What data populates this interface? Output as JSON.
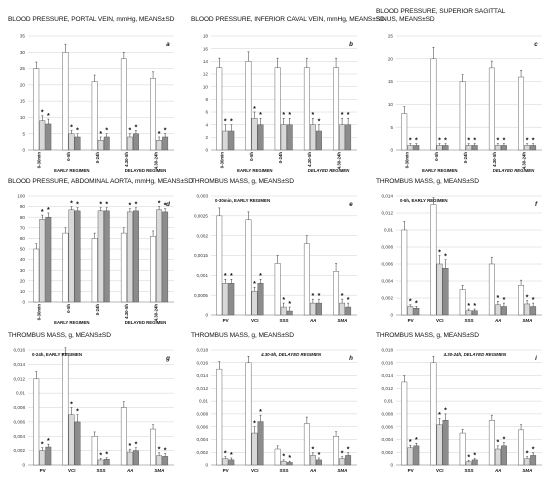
{
  "chart_data": [
    {
      "id": "a",
      "type": "bar",
      "letter": "a",
      "title": "BLOOD PRESSURE, PORTAL VEIN, mmHg, MEANS±SD",
      "subtitle": "",
      "categories": [
        "0-30min",
        "0-5h",
        "0-24h",
        "4.30-5h",
        "4.30-24h"
      ],
      "italic_categories": [],
      "category_style": "vertical",
      "regimes": [
        {
          "label": "EARLY REGIMEN",
          "from": 0,
          "to": 2,
          "italic": false
        },
        {
          "label": "DELAYED REGIMEN",
          "from": 3,
          "to": 4,
          "italic": false
        }
      ],
      "ylim": [
        0,
        35
      ],
      "ticks": [
        0,
        5,
        10,
        15,
        20,
        25,
        30,
        35
      ],
      "series": [
        {
          "values": [
            25,
            30,
            21,
            28,
            22
          ],
          "err": [
            2,
            2.5,
            2,
            2,
            2
          ],
          "color": "#ffffff",
          "star": false
        },
        {
          "values": [
            9,
            5,
            3,
            4,
            3
          ],
          "err": [
            1.5,
            1,
            1,
            1,
            1
          ],
          "color": "#d9d9d9",
          "star": true
        },
        {
          "values": [
            8,
            4,
            4,
            5,
            4
          ],
          "err": [
            1.5,
            1,
            1,
            1,
            1
          ],
          "color": "#8c8c8c",
          "star": true
        }
      ]
    },
    {
      "id": "b",
      "type": "bar",
      "letter": "b",
      "title": "BLOOD PRESSURE, INFERIOR CAVAL VEIN, mmHg, MEANS±SD",
      "subtitle": "",
      "categories": [
        "0-30min",
        "0-5h",
        "0-24h",
        "4.30-5h",
        "4.30-24h"
      ],
      "italic_categories": [],
      "category_style": "vertical",
      "regimes": [
        {
          "label": "EARLY REGIMEN",
          "from": 0,
          "to": 2,
          "italic": false
        },
        {
          "label": "DELAYED REGIMEN",
          "from": 3,
          "to": 4,
          "italic": true
        }
      ],
      "ylim": [
        0,
        18
      ],
      "ticks": [
        0,
        2,
        4,
        6,
        8,
        10,
        12,
        14,
        16,
        18
      ],
      "series": [
        {
          "values": [
            13,
            14,
            13,
            13,
            13
          ],
          "err": [
            1.5,
            1.5,
            1.5,
            1.5,
            1.5
          ],
          "color": "#ffffff",
          "star": false
        },
        {
          "values": [
            3,
            5,
            4,
            4,
            4
          ],
          "err": [
            1,
            1,
            1,
            1,
            1
          ],
          "color": "#d9d9d9",
          "star": true
        },
        {
          "values": [
            3,
            4,
            4,
            3,
            4
          ],
          "err": [
            1,
            1,
            1,
            1,
            1
          ],
          "color": "#8c8c8c",
          "star": true
        }
      ]
    },
    {
      "id": "c",
      "type": "bar",
      "letter": "c",
      "title": "BLOOD PRESSURE, SUPERIOR SAGITTAL SINUS, MEANS±SD",
      "subtitle": "",
      "categories": [
        "0-30min",
        "0-5h",
        "0-24h",
        "4.30-5h",
        "4.30-24h"
      ],
      "italic_categories": [],
      "category_style": "vertical",
      "regimes": [
        {
          "label": "EARLY REGIMEN",
          "from": 0,
          "to": 2,
          "italic": false
        },
        {
          "label": "DELAYED REGIMEN",
          "from": 3,
          "to": 4,
          "italic": true
        }
      ],
      "ylim": [
        0,
        25
      ],
      "ticks": [
        0,
        5,
        10,
        15,
        20,
        25
      ],
      "series": [
        {
          "values": [
            8,
            20,
            15,
            18,
            16
          ],
          "err": [
            1.5,
            2.5,
            1.5,
            1.5,
            1.5
          ],
          "color": "#ffffff",
          "star": false
        },
        {
          "values": [
            1,
            1,
            1,
            1,
            1
          ],
          "err": [
            0.4,
            0.4,
            0.4,
            0.4,
            0.4
          ],
          "color": "#d9d9d9",
          "star": true
        },
        {
          "values": [
            1,
            1,
            1,
            1,
            1
          ],
          "err": [
            0.4,
            0.4,
            0.4,
            0.4,
            0.4
          ],
          "color": "#8c8c8c",
          "star": true
        }
      ]
    },
    {
      "id": "d",
      "type": "bar",
      "letter": "d",
      "title": "BLOOD PRESSURE, ABDOMINAL AORTA, mmHg, MEANS±SD",
      "subtitle": "",
      "categories": [
        "0-30min",
        "0-5h",
        "0-24h",
        "4.30-5h",
        "4.30-24h"
      ],
      "italic_categories": [],
      "category_style": "vertical",
      "regimes": [
        {
          "label": "EARLY REGIMEN",
          "from": 0,
          "to": 2,
          "italic": false
        },
        {
          "label": "DELAYED REGIMEN",
          "from": 3,
          "to": 4,
          "italic": false
        }
      ],
      "ylim": [
        0,
        100
      ],
      "ticks": [
        0,
        10,
        20,
        30,
        40,
        50,
        60,
        70,
        80,
        90,
        100
      ],
      "series": [
        {
          "values": [
            50,
            65,
            60,
            65,
            62
          ],
          "err": [
            5,
            5,
            5,
            5,
            5
          ],
          "color": "#ffffff",
          "star": false
        },
        {
          "values": [
            78,
            87,
            86,
            85,
            87
          ],
          "err": [
            4,
            3,
            3,
            3,
            3
          ],
          "color": "#d9d9d9",
          "star": true
        },
        {
          "values": [
            80,
            86,
            86,
            86,
            85
          ],
          "err": [
            4,
            3,
            3,
            3,
            3
          ],
          "color": "#8c8c8c",
          "star": true
        }
      ]
    },
    {
      "id": "e",
      "type": "bar",
      "letter": "e",
      "title": "THROMBUS MASS, g, MEANS±SD",
      "subtitle": "0-30min, EARLY REGIMEN",
      "categories": [
        "PV",
        "VCI",
        "SSS",
        "AA",
        "SMA"
      ],
      "italic_categories": [
        3,
        4
      ],
      "category_style": "horizontal",
      "regimes": [],
      "ylim": [
        0,
        0.003
      ],
      "ticks": [
        0,
        0.0005,
        0.001,
        0.0015,
        0.002,
        0.0025,
        0.003
      ],
      "tick_labels": [
        "0",
        "0,0005",
        "0,001",
        "0,0015",
        "0,002",
        "0,0025",
        "0,003"
      ],
      "series": [
        {
          "values": [
            0.0025,
            0.0024,
            0.0013,
            0.0018,
            0.0011
          ],
          "err": [
            0.0002,
            0.0002,
            0.0002,
            0.0002,
            0.0002
          ],
          "color": "#ffffff",
          "star": false
        },
        {
          "values": [
            0.0008,
            0.0006,
            0.0002,
            0.0003,
            0.0003
          ],
          "err": [
            0.0001,
            0.0001,
            0.0001,
            0.0001,
            0.0001
          ],
          "color": "#d9d9d9",
          "star": true
        },
        {
          "values": [
            0.0008,
            0.0008,
            0.0001,
            0.0003,
            0.0002
          ],
          "err": [
            0.0001,
            0.0001,
            0.0001,
            0.0001,
            0.0001
          ],
          "color": "#8c8c8c",
          "star": true
        }
      ]
    },
    {
      "id": "f",
      "type": "bar",
      "letter": "f",
      "title": "THROMBUS MASS, g, MEANS±SD",
      "subtitle": "0-5h, EARLY REGIMEN",
      "categories": [
        "PV",
        "VCI",
        "SSS",
        "AA",
        "SMA"
      ],
      "italic_categories": [
        3,
        4
      ],
      "category_style": "horizontal",
      "regimes": [],
      "ylim": [
        0,
        0.014
      ],
      "ticks": [
        0,
        0.002,
        0.004,
        0.006,
        0.008,
        0.01,
        0.012,
        0.014
      ],
      "tick_labels": [
        "0",
        "0,002",
        "0,004",
        "0,006",
        "0,008",
        "0,01",
        "0,012",
        "0,014"
      ],
      "series": [
        {
          "values": [
            0.01,
            0.013,
            0.003,
            0.006,
            0.0035
          ],
          "err": [
            0.001,
            0.0008,
            0.0005,
            0.0008,
            0.0006
          ],
          "color": "#ffffff",
          "star": false
        },
        {
          "values": [
            0.001,
            0.006,
            0.0005,
            0.0012,
            0.0013
          ],
          "err": [
            0.0002,
            0.001,
            0.0002,
            0.0004,
            0.0004
          ],
          "color": "#d9d9d9",
          "star": true
        },
        {
          "values": [
            0.0008,
            0.0055,
            0.0005,
            0.001,
            0.001
          ],
          "err": [
            0.0002,
            0.001,
            0.0002,
            0.0004,
            0.0004
          ],
          "color": "#8c8c8c",
          "star": true
        }
      ]
    },
    {
      "id": "g",
      "type": "bar",
      "letter": "g",
      "title": "THROMBUS MASS, g, MEANS±SD",
      "subtitle": "0-24h, EARLY REGIMEN",
      "categories": [
        "PV",
        "VCI",
        "SSS",
        "AA",
        "SMA"
      ],
      "italic_categories": [
        3,
        4
      ],
      "category_style": "horizontal",
      "regimes": [],
      "ylim": [
        0,
        0.016
      ],
      "ticks": [
        0,
        0.002,
        0.004,
        0.006,
        0.008,
        0.01,
        0.012,
        0.014,
        0.016
      ],
      "tick_labels": [
        "0",
        "0,002",
        "0,004",
        "0,006",
        "0,008",
        "0,01",
        "0,012",
        "0,014",
        "0,016"
      ],
      "series": [
        {
          "values": [
            0.012,
            0.0155,
            0.004,
            0.008,
            0.005
          ],
          "err": [
            0.001,
            0.0008,
            0.0006,
            0.0008,
            0.0006
          ],
          "color": "#ffffff",
          "star": false
        },
        {
          "values": [
            0.002,
            0.007,
            0.0007,
            0.0018,
            0.0013
          ],
          "err": [
            0.0004,
            0.001,
            0.0002,
            0.0004,
            0.0004
          ],
          "color": "#d9d9d9",
          "star": true
        },
        {
          "values": [
            0.0025,
            0.006,
            0.0008,
            0.002,
            0.0012
          ],
          "err": [
            0.0004,
            0.001,
            0.0002,
            0.0004,
            0.0004
          ],
          "color": "#8c8c8c",
          "star": true
        }
      ]
    },
    {
      "id": "h",
      "type": "bar",
      "letter": "h",
      "title": "THROMBUS MASS, g, MEANS±SD",
      "subtitle": "4.30-5h, DELAYED REGIMEN",
      "subtitle_italic": true,
      "categories": [
        "PV",
        "VCI",
        "SSS",
        "AA",
        "SMA"
      ],
      "italic_categories": [
        3,
        4
      ],
      "category_style": "horizontal",
      "regimes": [],
      "ylim": [
        0,
        0.018
      ],
      "ticks": [
        0,
        0.002,
        0.004,
        0.006,
        0.008,
        0.01,
        0.012,
        0.014,
        0.016,
        0.018
      ],
      "tick_labels": [
        "0",
        "0,002",
        "0,004",
        "0,006",
        "0,008",
        "0,01",
        "0,012",
        "0,014",
        "0,016",
        "0,018"
      ],
      "series": [
        {
          "values": [
            0.015,
            0.016,
            0.0025,
            0.0065,
            0.0045
          ],
          "err": [
            0.0012,
            0.001,
            0.0005,
            0.001,
            0.0007
          ],
          "color": "#ffffff",
          "star": false
        },
        {
          "values": [
            0.001,
            0.005,
            0.0006,
            0.0015,
            0.001
          ],
          "err": [
            0.0003,
            0.001,
            0.0002,
            0.0004,
            0.0003
          ],
          "color": "#d9d9d9",
          "star": true
        },
        {
          "values": [
            0.0008,
            0.0068,
            0.0004,
            0.0008,
            0.0015
          ],
          "err": [
            0.0003,
            0.001,
            0.0002,
            0.0003,
            0.0004
          ],
          "color": "#8c8c8c",
          "star": true
        }
      ]
    },
    {
      "id": "i",
      "type": "bar",
      "letter": "i",
      "title": "THROMBUS MASS, g, MEANS±SD",
      "subtitle": "4.30-24h, DELAYED REGIMEN",
      "subtitle_italic": true,
      "categories": [
        "PV",
        "VCI",
        "SSS",
        "AA",
        "SMA"
      ],
      "italic_categories": [
        3,
        4
      ],
      "category_style": "horizontal",
      "regimes": [],
      "ylim": [
        0,
        0.018
      ],
      "ticks": [
        0,
        0.002,
        0.004,
        0.006,
        0.008,
        0.01,
        0.012,
        0.014,
        0.016,
        0.018
      ],
      "tick_labels": [
        "0",
        "0,002",
        "0,004",
        "0,006",
        "0,008",
        "0,01",
        "0,012",
        "0,014",
        "0,016",
        "0,018"
      ],
      "series": [
        {
          "values": [
            0.013,
            0.016,
            0.005,
            0.007,
            0.0055
          ],
          "err": [
            0.001,
            0.001,
            0.0006,
            0.0008,
            0.0008
          ],
          "color": "#ffffff",
          "star": false
        },
        {
          "values": [
            0.0027,
            0.0063,
            0.0005,
            0.0025,
            0.001
          ],
          "err": [
            0.0004,
            0.001,
            0.0002,
            0.0005,
            0.0003
          ],
          "color": "#d9d9d9",
          "star": true
        },
        {
          "values": [
            0.003,
            0.007,
            0.0008,
            0.003,
            0.0015
          ],
          "err": [
            0.0004,
            0.001,
            0.0002,
            0.0005,
            0.0004
          ],
          "color": "#8c8c8c",
          "star": true
        }
      ]
    }
  ]
}
